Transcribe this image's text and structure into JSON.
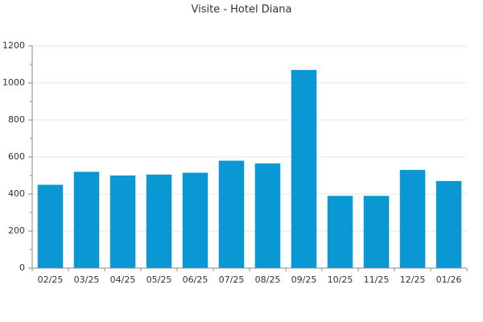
{
  "chart_data": {
    "type": "bar",
    "title": "Visite - Hotel Diana",
    "categories": [
      "02/25",
      "03/25",
      "04/25",
      "05/25",
      "06/25",
      "07/25",
      "08/25",
      "09/25",
      "10/25",
      "11/25",
      "12/25",
      "01/26"
    ],
    "values": [
      450,
      520,
      500,
      505,
      515,
      580,
      565,
      1070,
      390,
      390,
      530,
      470
    ],
    "color": "#0a98d4",
    "ylim": [
      0,
      1200
    ],
    "yticks": [
      0,
      200,
      400,
      600,
      800,
      1000,
      1200
    ],
    "grid": true
  }
}
